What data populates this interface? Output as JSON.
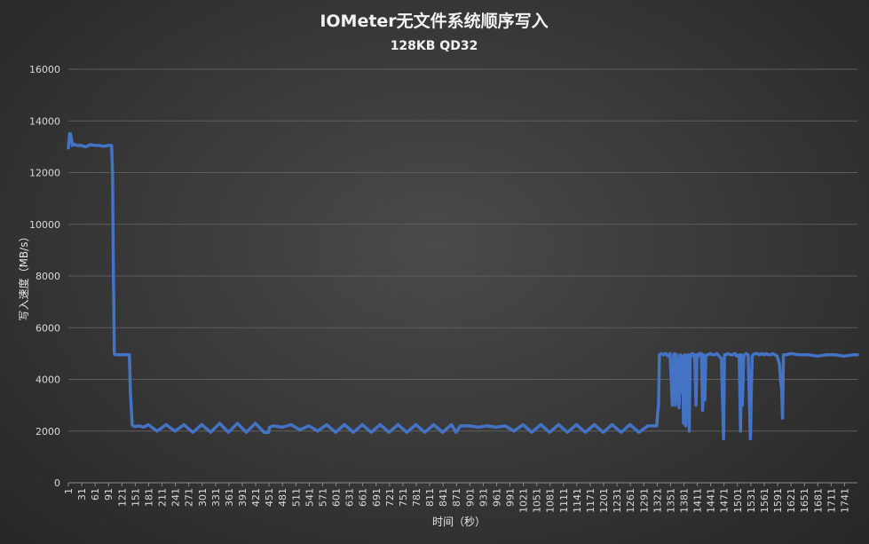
{
  "chart_data": {
    "type": "line",
    "title": "IOMeter无文件系统顺序写入",
    "subtitle": "128KB QD32",
    "xlabel": "时间（秒）",
    "ylabel": "写入速度（MB/s）",
    "ylim": [
      0,
      16000
    ],
    "yticks": [
      "0",
      "2000",
      "4000",
      "6000",
      "8000",
      "10000",
      "12000",
      "14000",
      "16000"
    ],
    "xticks": [
      "1",
      "31",
      "61",
      "91",
      "121",
      "151",
      "181",
      "211",
      "241",
      "271",
      "301",
      "331",
      "361",
      "391",
      "421",
      "451",
      "481",
      "511",
      "541",
      "571",
      "601",
      "631",
      "661",
      "691",
      "721",
      "751",
      "781",
      "811",
      "841",
      "871",
      "901",
      "931",
      "961",
      "991",
      "1021",
      "1051",
      "1081",
      "1111",
      "1141",
      "1171",
      "1201",
      "1231",
      "1261",
      "1291",
      "1321",
      "1351",
      "1381",
      "1411",
      "1441",
      "1471",
      "1501",
      "1531",
      "1561",
      "1591",
      "1621",
      "1651",
      "1681",
      "1711",
      "1741"
    ],
    "xlim": [
      1,
      1770
    ],
    "grid": true,
    "legend": "none",
    "color": "#4472c4",
    "series": [
      {
        "x": [
          1,
          4,
          6,
          10,
          14,
          20,
          30,
          40,
          50,
          60,
          70,
          80,
          90,
          98,
          100,
          102,
          104,
          106,
          110,
          120,
          130,
          138,
          140,
          144,
          146,
          150,
          160,
          170,
          180,
          200,
          220,
          240,
          260,
          280,
          300,
          320,
          340,
          360,
          380,
          400,
          420,
          440,
          450,
          452,
          460,
          480,
          500,
          520,
          540,
          560,
          580,
          600,
          620,
          640,
          660,
          680,
          700,
          720,
          740,
          760,
          780,
          800,
          820,
          840,
          860,
          870,
          880,
          900,
          920,
          940,
          960,
          980,
          1000,
          1020,
          1040,
          1060,
          1080,
          1100,
          1120,
          1140,
          1160,
          1180,
          1200,
          1220,
          1240,
          1260,
          1280,
          1300,
          1310,
          1320,
          1322,
          1324,
          1326,
          1330,
          1335,
          1340,
          1345,
          1350,
          1355,
          1358,
          1360,
          1362,
          1365,
          1368,
          1370,
          1373,
          1375,
          1378,
          1380,
          1383,
          1385,
          1388,
          1390,
          1393,
          1395,
          1398,
          1400,
          1403,
          1405,
          1408,
          1410,
          1413,
          1415,
          1418,
          1420,
          1423,
          1425,
          1428,
          1430,
          1433,
          1435,
          1440,
          1445,
          1450,
          1455,
          1460,
          1465,
          1470,
          1472,
          1475,
          1480,
          1485,
          1490,
          1495,
          1500,
          1505,
          1508,
          1510,
          1512,
          1515,
          1520,
          1525,
          1530,
          1532,
          1534,
          1536,
          1540,
          1545,
          1550,
          1555,
          1560,
          1565,
          1570,
          1575,
          1580,
          1585,
          1590,
          1595,
          1598,
          1600,
          1602,
          1604,
          1606,
          1610,
          1620,
          1640,
          1660,
          1680,
          1700,
          1720,
          1740,
          1760,
          1770
        ],
        "y": [
          12950,
          13500,
          13500,
          13050,
          13100,
          13050,
          13050,
          13000,
          13080,
          13050,
          13050,
          13020,
          13050,
          13050,
          12000,
          8000,
          5000,
          4950,
          4950,
          4950,
          4950,
          4950,
          3500,
          2250,
          2200,
          2180,
          2200,
          2150,
          2250,
          2000,
          2250,
          2000,
          2250,
          1950,
          2250,
          1950,
          2300,
          1950,
          2300,
          1950,
          2300,
          1950,
          1950,
          2150,
          2200,
          2150,
          2250,
          2050,
          2200,
          2000,
          2250,
          1950,
          2250,
          1950,
          2250,
          1950,
          2250,
          1950,
          2250,
          1950,
          2250,
          1950,
          2250,
          1950,
          2250,
          1950,
          2200,
          2200,
          2150,
          2200,
          2150,
          2200,
          2000,
          2250,
          1950,
          2250,
          1950,
          2250,
          1950,
          2250,
          1950,
          2250,
          1950,
          2250,
          1950,
          2250,
          1950,
          2200,
          2200,
          2200,
          2700,
          3000,
          4950,
          5000,
          4950,
          5000,
          4900,
          5000,
          3000,
          4950,
          5000,
          3000,
          4950,
          4000,
          2900,
          4950,
          3500,
          4900,
          2300,
          4950,
          2200,
          4600,
          4950,
          2000,
          4950,
          4900,
          5000,
          4950,
          4950,
          3000,
          4950,
          4900,
          5000,
          4950,
          5000,
          2800,
          4950,
          3200,
          4900,
          4950,
          4950,
          5000,
          4950,
          4950,
          5000,
          4900,
          4800,
          1700,
          4950,
          4950,
          5000,
          4950,
          4950,
          5000,
          4900,
          4950,
          2000,
          4950,
          3000,
          4900,
          5000,
          4950,
          1700,
          3500,
          4900,
          4950,
          5000,
          5000,
          4950,
          5000,
          4950,
          5000,
          4950,
          4950,
          5000,
          4950,
          4900,
          4600,
          3900,
          3600,
          2500,
          4950,
          4950,
          4950,
          5000,
          4950,
          4950,
          4900,
          4950,
          4950,
          4900,
          4950,
          4950
        ]
      }
    ]
  }
}
